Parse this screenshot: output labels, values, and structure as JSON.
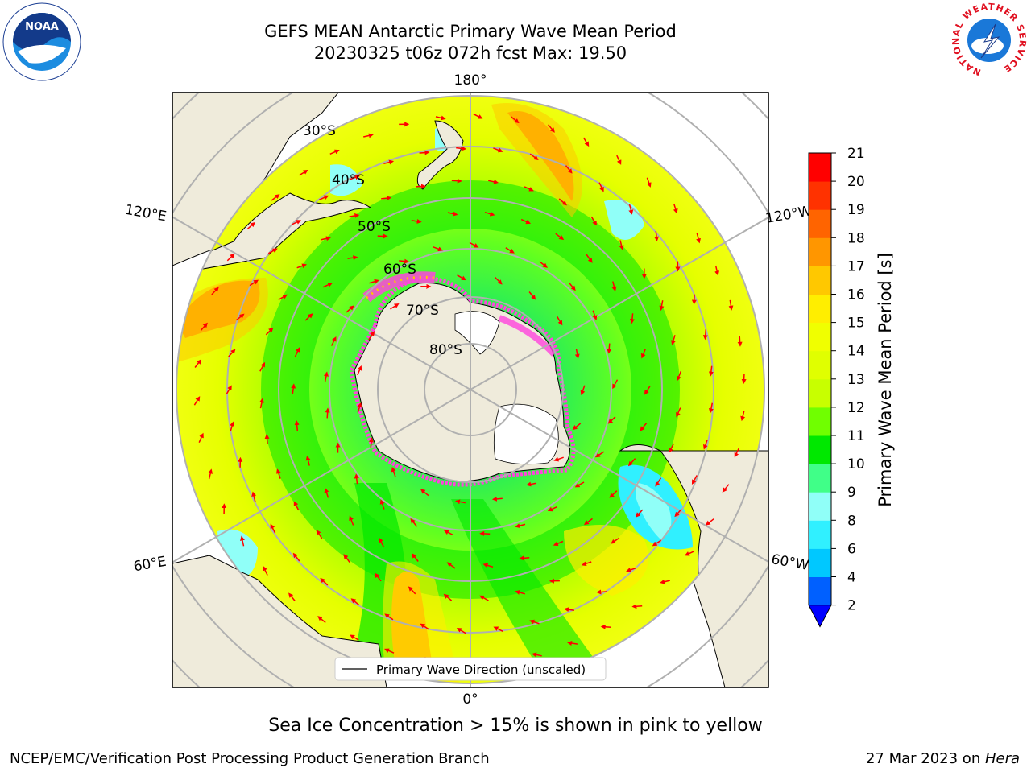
{
  "title": {
    "line1": "GEFS MEAN Antarctic Primary Wave Mean Period",
    "line2": "20230325 t06z 072h fcst   Max: 19.50"
  },
  "map": {
    "projection": "south-polar-stereographic",
    "longitude_labels": {
      "top": "180°",
      "bottom": "0°",
      "left_upper": "120°E",
      "left_lower": "60°E",
      "right_upper": "120°W",
      "right_lower": "60°W"
    },
    "latitude_labels": [
      "30°S",
      "40°S",
      "50°S",
      "60°S",
      "70°S",
      "80°S"
    ],
    "legend_label": "Primary Wave Direction (unscaled)",
    "colors": {
      "land": "#efebdb",
      "ice_edge": "#ff44dd",
      "arrow": "#ff0000",
      "grid": "#b0b0b0"
    }
  },
  "colorbar": {
    "label": "Primary Wave Mean Period [s]",
    "ticks": [
      "2",
      "4",
      "6",
      "8",
      "9",
      "10",
      "11",
      "12",
      "13",
      "14",
      "15",
      "16",
      "17",
      "18",
      "19",
      "20",
      "21"
    ],
    "colors": [
      "#0060ff",
      "#00c8ff",
      "#30f0ff",
      "#90fff8",
      "#40ff88",
      "#00e800",
      "#70ff00",
      "#c8ff00",
      "#e0ff00",
      "#f0ff00",
      "#ffee00",
      "#ffc800",
      "#ff9600",
      "#ff6400",
      "#ff3200",
      "#ff0000"
    ],
    "extend_color": "#0000ff"
  },
  "subtitle": "Sea Ice Concentration > 15% is shown in pink to yellow",
  "footer": {
    "left": "NCEP/EMC/Verification Post Processing Product Generation Branch",
    "date": "27 Mar 2023 on ",
    "machine": "Hera"
  },
  "logos": {
    "noaa": "NOAA",
    "nws_ring": "NATIONAL WEATHER SERVICE"
  }
}
